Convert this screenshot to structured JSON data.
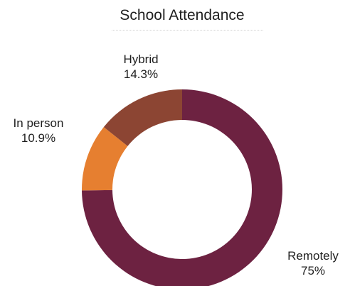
{
  "chart_data": {
    "type": "pie",
    "title": "School Attendance",
    "donut": true,
    "categories": [
      "Remotely",
      "In person",
      "Hybrid"
    ],
    "values": [
      75,
      10.9,
      14.3
    ],
    "value_labels": [
      "75%",
      "10.9%",
      "14.3%"
    ],
    "colors": [
      "#6d2241",
      "#e67f30",
      "#8c4533"
    ],
    "start_angle_deg": 0,
    "direction": "clockwise",
    "legend": "none"
  }
}
